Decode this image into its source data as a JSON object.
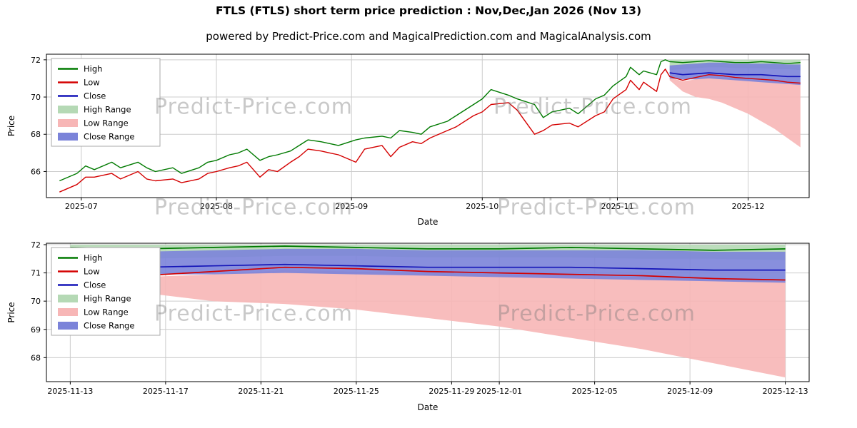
{
  "page": {
    "title": "FTLS (FTLS) short term price prediction : Nov,Dec,Jan 2026 (Nov 13)",
    "subtitle": "powered by Predict-Price.com and MagicalPrediction.com and MagicalAnalysis.com"
  },
  "watermark": {
    "text": "Predict-Price.com"
  },
  "chart_data": [
    {
      "name": "overview",
      "type": "line",
      "title": "",
      "xlabel": "Date",
      "ylabel": "Price",
      "grid": true,
      "legend_position": "upper left",
      "ylim": [
        64.6,
        72.3
      ],
      "yticks": [
        66,
        68,
        70,
        72
      ],
      "xlim": [
        "2025-06-23",
        "2025-12-15"
      ],
      "xticks": [
        {
          "label": "2025-07",
          "date": "2025-07-01"
        },
        {
          "label": "2025-08",
          "date": "2025-08-01"
        },
        {
          "label": "2025-09",
          "date": "2025-09-01"
        },
        {
          "label": "2025-10",
          "date": "2025-10-01"
        },
        {
          "label": "2025-11",
          "date": "2025-11-01"
        },
        {
          "label": "2025-12",
          "date": "2025-12-01"
        }
      ],
      "legend": [
        {
          "label": "High",
          "kind": "line",
          "color": "#007a00"
        },
        {
          "label": "Low",
          "kind": "line",
          "color": "#d40000"
        },
        {
          "label": "Close",
          "kind": "line",
          "color": "#1414b8"
        },
        {
          "label": "High Range",
          "kind": "patch",
          "color": "#b5d9b5"
        },
        {
          "label": "Low Range",
          "kind": "patch",
          "color": "#f7b6b6"
        },
        {
          "label": "Close Range",
          "kind": "patch",
          "color": "#7b83d9"
        }
      ],
      "history": {
        "dates": [
          "2025-06-26",
          "2025-06-30",
          "2025-07-02",
          "2025-07-04",
          "2025-07-08",
          "2025-07-10",
          "2025-07-14",
          "2025-07-16",
          "2025-07-18",
          "2025-07-22",
          "2025-07-24",
          "2025-07-28",
          "2025-07-30",
          "2025-08-01",
          "2025-08-04",
          "2025-08-06",
          "2025-08-08",
          "2025-08-11",
          "2025-08-13",
          "2025-08-15",
          "2025-08-18",
          "2025-08-20",
          "2025-08-22",
          "2025-08-25",
          "2025-08-27",
          "2025-08-29",
          "2025-09-02",
          "2025-09-04",
          "2025-09-08",
          "2025-09-10",
          "2025-09-12",
          "2025-09-15",
          "2025-09-17",
          "2025-09-19",
          "2025-09-23",
          "2025-09-25",
          "2025-09-29",
          "2025-10-01",
          "2025-10-03",
          "2025-10-07",
          "2025-10-09",
          "2025-10-13",
          "2025-10-15",
          "2025-10-17",
          "2025-10-21",
          "2025-10-23",
          "2025-10-27",
          "2025-10-29",
          "2025-10-31",
          "2025-11-03",
          "2025-11-04",
          "2025-11-06",
          "2025-11-07",
          "2025-11-10",
          "2025-11-11",
          "2025-11-12"
        ],
        "high": [
          65.5,
          65.9,
          66.3,
          66.1,
          66.5,
          66.2,
          66.5,
          66.2,
          66.0,
          66.2,
          65.9,
          66.2,
          66.5,
          66.6,
          66.9,
          67.0,
          67.2,
          66.6,
          66.8,
          66.9,
          67.1,
          67.4,
          67.7,
          67.6,
          67.5,
          67.4,
          67.7,
          67.8,
          67.9,
          67.8,
          68.2,
          68.1,
          68.0,
          68.4,
          68.7,
          69.0,
          69.6,
          69.9,
          70.4,
          70.1,
          69.9,
          69.6,
          68.9,
          69.2,
          69.4,
          69.1,
          69.9,
          70.1,
          70.6,
          71.1,
          71.6,
          71.2,
          71.4,
          71.2,
          71.9,
          72.0
        ],
        "low": [
          64.9,
          65.3,
          65.7,
          65.7,
          65.9,
          65.6,
          66.0,
          65.6,
          65.5,
          65.6,
          65.4,
          65.6,
          65.9,
          66.0,
          66.2,
          66.3,
          66.5,
          65.7,
          66.1,
          66.0,
          66.5,
          66.8,
          67.2,
          67.1,
          67.0,
          66.9,
          66.5,
          67.2,
          67.4,
          66.8,
          67.3,
          67.6,
          67.5,
          67.8,
          68.2,
          68.4,
          69.0,
          69.2,
          69.6,
          69.7,
          69.3,
          68.0,
          68.2,
          68.5,
          68.6,
          68.4,
          69.0,
          69.2,
          69.9,
          70.4,
          70.9,
          70.4,
          70.8,
          70.3,
          71.2,
          71.5
        ]
      },
      "prediction": {
        "dates": [
          "2025-11-13",
          "2025-11-16",
          "2025-11-19",
          "2025-11-22",
          "2025-11-25",
          "2025-11-28",
          "2025-12-01",
          "2025-12-04",
          "2025-12-07",
          "2025-12-10",
          "2025-12-13"
        ],
        "high": [
          71.9,
          71.85,
          71.9,
          71.95,
          71.9,
          71.85,
          71.85,
          71.9,
          71.85,
          71.8,
          71.85
        ],
        "high_upper": [
          72.0,
          72.0,
          72.0,
          72.0,
          72.0,
          72.0,
          72.0,
          72.0,
          72.0,
          72.0,
          72.0
        ],
        "high_lower": [
          71.45,
          71.5,
          71.55,
          71.6,
          71.6,
          71.55,
          71.55,
          71.55,
          71.5,
          71.5,
          71.45
        ],
        "close": [
          71.3,
          71.2,
          71.25,
          71.3,
          71.25,
          71.2,
          71.2,
          71.2,
          71.15,
          71.1,
          71.1
        ],
        "close_upper": [
          71.7,
          71.75,
          71.8,
          71.85,
          71.85,
          71.8,
          71.8,
          71.8,
          71.8,
          71.75,
          71.75
        ],
        "close_lower": [
          71.0,
          70.95,
          70.95,
          71.0,
          70.95,
          70.9,
          70.85,
          70.8,
          70.75,
          70.7,
          70.65
        ],
        "low": [
          71.1,
          70.9,
          71.05,
          71.2,
          71.15,
          71.05,
          71.0,
          70.95,
          70.9,
          70.8,
          70.75
        ],
        "low_upper": [
          71.05,
          70.85,
          70.95,
          71.1,
          71.05,
          71.0,
          70.95,
          70.9,
          70.85,
          70.8,
          70.7
        ],
        "low_lower": [
          70.9,
          70.3,
          70.0,
          69.9,
          69.7,
          69.4,
          69.1,
          68.7,
          68.3,
          67.8,
          67.3
        ]
      }
    },
    {
      "name": "prediction-detail",
      "type": "line",
      "title": "",
      "xlabel": "Date",
      "ylabel": "Price",
      "grid": true,
      "legend_position": "upper left",
      "ylim": [
        67.15,
        72.05
      ],
      "yticks": [
        68,
        69,
        70,
        71,
        72
      ],
      "xlim": [
        "2025-11-12",
        "2025-12-14"
      ],
      "xticks": [
        {
          "label": "2025-11-13",
          "date": "2025-11-13"
        },
        {
          "label": "2025-11-17",
          "date": "2025-11-17"
        },
        {
          "label": "2025-11-21",
          "date": "2025-11-21"
        },
        {
          "label": "2025-11-25",
          "date": "2025-11-25"
        },
        {
          "label": "2025-11-29",
          "date": "2025-11-29"
        },
        {
          "label": "2025-12-01",
          "date": "2025-12-01"
        },
        {
          "label": "2025-12-05",
          "date": "2025-12-05"
        },
        {
          "label": "2025-12-09",
          "date": "2025-12-09"
        },
        {
          "label": "2025-12-13",
          "date": "2025-12-13"
        }
      ],
      "legend": [
        {
          "label": "High",
          "kind": "line",
          "color": "#007a00"
        },
        {
          "label": "Low",
          "kind": "line",
          "color": "#d40000"
        },
        {
          "label": "Close",
          "kind": "line",
          "color": "#1414b8"
        },
        {
          "label": "High Range",
          "kind": "patch",
          "color": "#b5d9b5"
        },
        {
          "label": "Low Range",
          "kind": "patch",
          "color": "#f7b6b6"
        },
        {
          "label": "Close Range",
          "kind": "patch",
          "color": "#7b83d9"
        }
      ],
      "prediction": {
        "dates": [
          "2025-11-13",
          "2025-11-16",
          "2025-11-19",
          "2025-11-22",
          "2025-11-25",
          "2025-11-28",
          "2025-12-01",
          "2025-12-04",
          "2025-12-07",
          "2025-12-10",
          "2025-12-13"
        ],
        "high": [
          71.9,
          71.85,
          71.9,
          71.95,
          71.9,
          71.85,
          71.85,
          71.9,
          71.85,
          71.8,
          71.85
        ],
        "high_upper": [
          72.0,
          72.0,
          72.0,
          72.0,
          72.0,
          72.0,
          72.0,
          72.0,
          72.0,
          72.0,
          72.0
        ],
        "high_lower": [
          71.45,
          71.5,
          71.55,
          71.6,
          71.6,
          71.55,
          71.55,
          71.55,
          71.5,
          71.5,
          71.45
        ],
        "close": [
          71.3,
          71.2,
          71.25,
          71.3,
          71.25,
          71.2,
          71.2,
          71.2,
          71.15,
          71.1,
          71.1
        ],
        "close_upper": [
          71.7,
          71.75,
          71.8,
          71.85,
          71.85,
          71.8,
          71.8,
          71.8,
          71.8,
          71.75,
          71.75
        ],
        "close_lower": [
          71.0,
          70.95,
          70.95,
          71.0,
          70.95,
          70.9,
          70.85,
          70.8,
          70.75,
          70.7,
          70.65
        ],
        "low": [
          71.1,
          70.9,
          71.05,
          71.2,
          71.15,
          71.05,
          71.0,
          70.95,
          70.9,
          70.8,
          70.75
        ],
        "low_upper": [
          71.05,
          70.85,
          70.95,
          71.1,
          71.05,
          71.0,
          70.95,
          70.9,
          70.85,
          70.8,
          70.7
        ],
        "low_lower": [
          70.9,
          70.3,
          70.0,
          69.9,
          69.7,
          69.4,
          69.1,
          68.7,
          68.3,
          67.8,
          67.3
        ]
      }
    }
  ]
}
